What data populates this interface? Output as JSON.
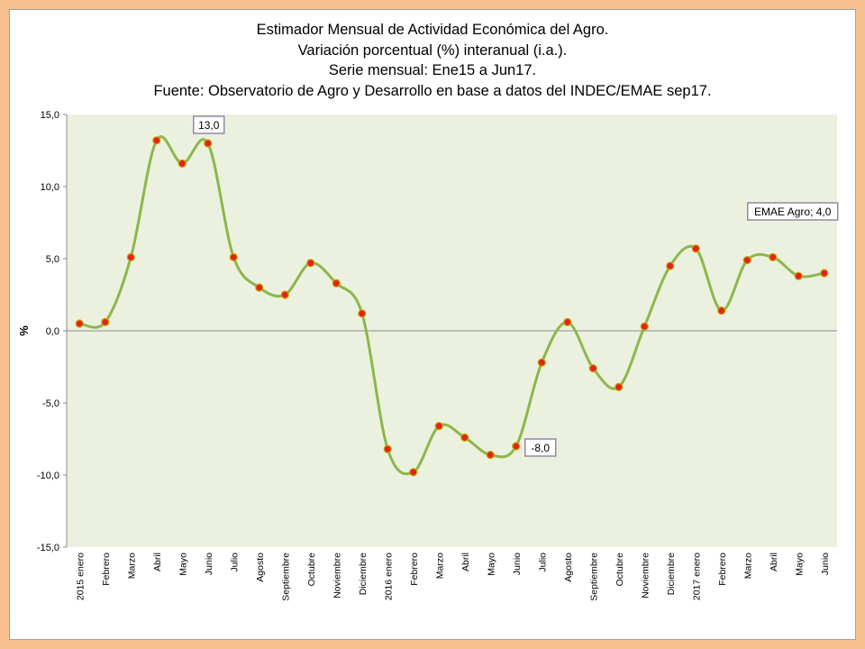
{
  "chart_data": {
    "type": "line",
    "title": [
      "Estimador Mensual de Actividad Económica del Agro.",
      "Variación porcentual (%) interanual (i.a.).",
      "Serie mensual: Ene15 a Jun17.",
      "Fuente: Observatorio de Agro y Desarrollo en base a datos del INDEC/EMAE sep17."
    ],
    "ylabel": "%",
    "xlabel": "",
    "ylim": [
      -15,
      15
    ],
    "y_ticks": [
      15,
      10,
      5,
      0,
      -5,
      -10,
      -15
    ],
    "y_tick_labels": [
      "15,0",
      "10,0",
      "5,0",
      "0,0",
      "-5,0",
      "-10,0",
      "-15,0"
    ],
    "grid": false,
    "categories": [
      "2015 enero",
      "Febrero",
      "Marzo",
      "Abril",
      "Mayo",
      "Junio",
      "Julio",
      "Agosto",
      "Septiembre",
      "Octubre",
      "Noviembre",
      "Diciembre",
      "2016 enero",
      "Febrero",
      "Marzo",
      "Abril",
      "Mayo",
      "Junio",
      "Julio",
      "Agosto",
      "Septiembre",
      "Octubre",
      "Noviembre",
      "Diciembre",
      "2017 enero",
      "Febrero",
      "Marzo",
      "Abril",
      "Mayo",
      "Junio"
    ],
    "series": [
      {
        "name": "EMAE Agro",
        "values": [
          0.5,
          0.6,
          5.1,
          13.2,
          11.6,
          13.0,
          5.1,
          3.0,
          2.5,
          4.7,
          3.3,
          1.2,
          -8.2,
          -9.8,
          -6.6,
          -7.4,
          -8.6,
          -8.0,
          -2.2,
          0.6,
          -2.6,
          -3.9,
          0.3,
          4.5,
          5.7,
          1.4,
          4.9,
          5.1,
          3.8,
          4.0
        ],
        "color": "#8db64b",
        "marker_color": "#e3231b"
      }
    ],
    "annotations": [
      {
        "text": "13,0",
        "index": 5
      },
      {
        "text": "-8,0",
        "index": 17
      },
      {
        "text": "EMAE Agro; 4,0",
        "index": 29
      }
    ],
    "colors": {
      "page_background": "#f7c08e",
      "plot_background": "#ebf1de",
      "line": "#8db64b",
      "marker": "#e3231b",
      "annotation_border": "#8e8aa8"
    }
  }
}
